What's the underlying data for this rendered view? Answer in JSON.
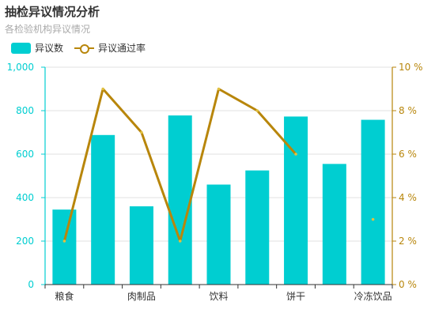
{
  "title": "抽检异议情况分析",
  "subtitle": "各检验机构异议情况",
  "colors": {
    "bar": "#00CED1",
    "line": "#B8860B",
    "grid": "#e0e0e0"
  },
  "chart_data": {
    "type": "bar",
    "categories": [
      "粮食",
      "",
      "肉制品",
      "",
      "饮料",
      "",
      "饼干",
      "",
      "冷冻饮品"
    ],
    "series": [
      {
        "name": "异议数",
        "type": "bar",
        "axis": "left",
        "values": [
          345,
          688,
          360,
          778,
          460,
          525,
          773,
          555,
          758
        ]
      },
      {
        "name": "异议通过率",
        "type": "line",
        "axis": "right",
        "values": [
          2,
          9,
          7,
          2,
          9,
          8,
          6,
          null,
          3
        ]
      }
    ],
    "yleft": {
      "min": 0,
      "max": 1000,
      "ticks": [
        "0",
        "200",
        "400",
        "600",
        "800",
        "1,000"
      ]
    },
    "yright": {
      "min": 0,
      "max": 10,
      "ticks": [
        "0 %",
        "2 %",
        "4 %",
        "6 %",
        "8 %",
        "10 %"
      ]
    },
    "legend": "top-left",
    "grid": true
  }
}
